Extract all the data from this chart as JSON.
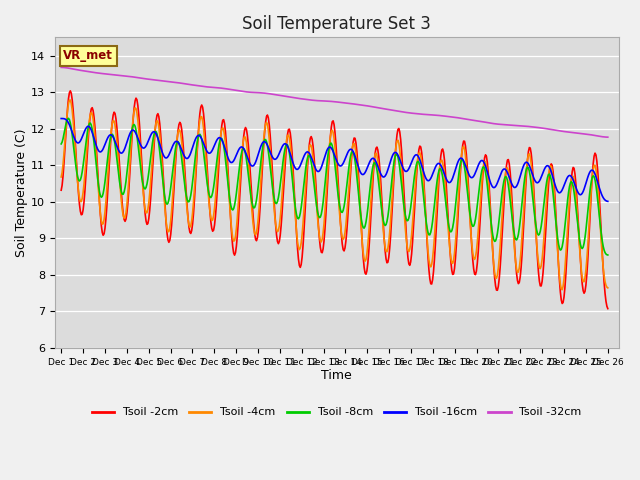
{
  "title": "Soil Temperature Set 3",
  "xlabel": "Time",
  "ylabel": "Soil Temperature (C)",
  "ylim": [
    6.0,
    14.5
  ],
  "yticks": [
    6.0,
    7.0,
    8.0,
    9.0,
    10.0,
    11.0,
    12.0,
    13.0,
    14.0
  ],
  "fig_facecolor": "#f0f0f0",
  "plot_bg_color": "#dcdcdc",
  "legend_labels": [
    "Tsoil -2cm",
    "Tsoil -4cm",
    "Tsoil -8cm",
    "Tsoil -16cm",
    "Tsoil -32cm"
  ],
  "legend_colors": [
    "#ff0000",
    "#ff8800",
    "#00cc00",
    "#0000ff",
    "#cc44cc"
  ],
  "annotation_text": "VR_met",
  "annotation_bg": "#ffff99",
  "annotation_border": "#8b6914",
  "line_width": 1.2,
  "n_points": 600
}
